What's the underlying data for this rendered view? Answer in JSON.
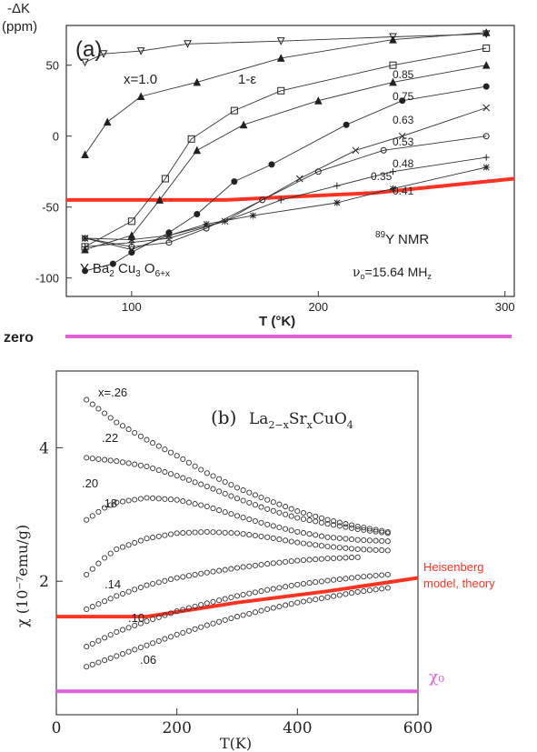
{
  "chart_data": [
    {
      "type": "scatter",
      "panel_label": "(a)",
      "ylabel_top": "-ΔK",
      "ylabel_unit": "(ppm)",
      "xlabel": "T (°K)",
      "xlim": [
        65,
        305
      ],
      "ylim": [
        -113,
        78
      ],
      "x_ticks": [
        100,
        200,
        300
      ],
      "y_ticks": [
        50,
        0,
        -50,
        -100
      ],
      "compound": "Y Ba2 Cu3 O6+x",
      "compound_base": "Y Ba",
      "compound_sub2": "2",
      "compound_cu": " Cu",
      "compound_sub3": "3",
      "compound_o": " O",
      "compound_sub": "6+x",
      "nmr_sup": "89",
      "nmr_label": "Y NMR",
      "freq_nu": "ν",
      "freq_sub": "o",
      "freq_rest": "=15.64 MH",
      "freq_sub2": "z",
      "one_minus_eps": "1-ε",
      "series": [
        {
          "name": "x=1.0",
          "marker": "triangle-down",
          "x": [
            75,
            85,
            105,
            130,
            180,
            240,
            290
          ],
          "y": [
            52,
            58,
            60,
            65,
            67,
            70,
            72
          ]
        },
        {
          "name": "1-ε",
          "marker": "triangle",
          "x": [
            75,
            87,
            105,
            135,
            180,
            240,
            290
          ],
          "y": [
            -13,
            10,
            28,
            38,
            55,
            68,
            73
          ]
        },
        {
          "name": "0.85",
          "marker": "square",
          "x": [
            75,
            100,
            118,
            132,
            155,
            180,
            240,
            290
          ],
          "y": [
            -78,
            -60,
            -30,
            -2,
            18,
            32,
            50,
            62
          ]
        },
        {
          "name": "0.75",
          "marker": "triangle",
          "x": [
            75,
            100,
            115,
            135,
            160,
            200,
            240,
            290
          ],
          "y": [
            -80,
            -70,
            -45,
            -10,
            8,
            25,
            38,
            50
          ]
        },
        {
          "name": "0.63",
          "marker": "dot",
          "x": [
            75,
            90,
            100,
            120,
            135,
            155,
            175,
            215,
            245,
            290
          ],
          "y": [
            -95,
            -90,
            -82,
            -68,
            -55,
            -32,
            -20,
            8,
            25,
            35
          ]
        },
        {
          "name": "0.53",
          "marker": "cross",
          "x": [
            75,
            100,
            120,
            150,
            190,
            220,
            245,
            290
          ],
          "y": [
            -72,
            -80,
            -70,
            -60,
            -30,
            -10,
            0,
            20
          ]
        },
        {
          "name": "0.48",
          "marker": "circle",
          "x": [
            75,
            100,
            120,
            140,
            170,
            200,
            235,
            290
          ],
          "y": [
            -72,
            -78,
            -75,
            -65,
            -45,
            -25,
            -10,
            0
          ]
        },
        {
          "name": "0.35",
          "marker": "plus",
          "x": [
            75,
            100,
            120,
            150,
            180,
            210,
            240,
            290
          ],
          "y": [
            -78,
            -75,
            -72,
            -60,
            -45,
            -35,
            -25,
            -15
          ]
        },
        {
          "name": "0.41",
          "marker": "asterisk",
          "x": [
            75,
            100,
            120,
            140,
            165,
            210,
            240,
            290
          ],
          "y": [
            -72,
            -73,
            -70,
            -62,
            -56,
            -47,
            -37,
            -22
          ]
        }
      ],
      "overlay_line": {
        "color": "#ff3322",
        "x": [
          65,
          150,
          230,
          305
        ],
        "y": [
          -45,
          -45,
          -40,
          -30
        ]
      }
    },
    {
      "type": "scatter",
      "panel_label": "(b)",
      "compound_la": "La",
      "compound_sub1": "2−x",
      "compound_sr": "Sr",
      "compound_sub2": "x",
      "compound_rest": "CuO",
      "compound_sub3": "4",
      "xlabel": "T(K)",
      "ylabel": "χ (10⁻⁷emu/g)",
      "xlim": [
        0,
        600
      ],
      "ylim": [
        0,
        5.15
      ],
      "x_ticks": [
        0,
        200,
        400,
        600
      ],
      "y_ticks": [
        2,
        4
      ],
      "series": [
        {
          "name": "x=.26",
          "x": [
            50,
            100,
            150,
            200,
            250,
            300,
            350,
            400,
            450,
            500,
            550
          ],
          "y": [
            4.72,
            4.38,
            4.12,
            3.88,
            3.62,
            3.4,
            3.22,
            3.05,
            2.92,
            2.82,
            2.74
          ]
        },
        {
          "name": ".22",
          "x": [
            50,
            100,
            150,
            200,
            250,
            300,
            350,
            400,
            450,
            500,
            550
          ],
          "y": [
            3.85,
            3.8,
            3.72,
            3.58,
            3.42,
            3.24,
            3.08,
            2.95,
            2.86,
            2.78,
            2.72
          ]
        },
        {
          "name": ".20",
          "x": [
            50,
            80,
            100,
            150,
            200,
            250,
            300,
            350,
            400,
            450,
            500,
            550
          ],
          "y": [
            2.92,
            3.1,
            3.18,
            3.25,
            3.22,
            3.12,
            2.98,
            2.85,
            2.74,
            2.66,
            2.62,
            2.6
          ]
        },
        {
          "name": ".18",
          "x": [
            50,
            80,
            100,
            150,
            200,
            250,
            300,
            350,
            400,
            450,
            500,
            550
          ],
          "y": [
            2.1,
            2.35,
            2.48,
            2.64,
            2.72,
            2.74,
            2.72,
            2.66,
            2.58,
            2.52,
            2.48,
            2.46
          ]
        },
        {
          "name": ".14",
          "x": [
            50,
            100,
            150,
            200,
            250,
            300,
            350,
            400,
            450,
            500
          ],
          "y": [
            1.58,
            1.78,
            1.94,
            2.05,
            2.13,
            2.2,
            2.26,
            2.31,
            2.34,
            2.36
          ]
        },
        {
          "name": ".10",
          "x": [
            50,
            100,
            150,
            200,
            250,
            300,
            350,
            400,
            450,
            500,
            550
          ],
          "y": [
            1.02,
            1.24,
            1.4,
            1.55,
            1.67,
            1.78,
            1.87,
            1.95,
            2.01,
            2.06,
            2.1
          ]
        },
        {
          "name": ".06",
          "x": [
            50,
            100,
            150,
            200,
            250,
            300,
            350,
            400,
            450,
            500,
            550
          ],
          "y": [
            0.72,
            0.88,
            1.04,
            1.2,
            1.34,
            1.47,
            1.58,
            1.68,
            1.76,
            1.84,
            1.9
          ]
        }
      ],
      "overlay_line": {
        "color": "#ff3322",
        "label_line1": "Heisenberg",
        "label_line2": "model, theory",
        "x": [
          0,
          150,
          300,
          450,
          600
        ],
        "y": [
          1.47,
          1.47,
          1.68,
          1.85,
          2.05
        ]
      }
    }
  ],
  "annotations": {
    "zero_label": "zero",
    "chi0_label": "χ₀",
    "chi0_value": 0.35,
    "pink_color": "#e060d8",
    "red_color": "#ff3322"
  }
}
